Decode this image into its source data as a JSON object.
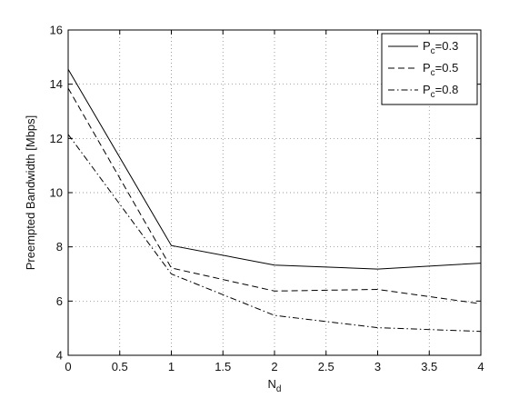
{
  "chart_data": {
    "type": "line",
    "title": "",
    "xlabel": "N",
    "xlabel_sub": "d",
    "ylabel": "Preempted Bandwidth [Mbps]",
    "xlim": [
      0,
      4
    ],
    "ylim": [
      4,
      16
    ],
    "xticks": [
      0,
      0.5,
      1,
      1.5,
      2,
      2.5,
      3,
      3.5,
      4
    ],
    "xtick_labels": [
      "0",
      "0.5",
      "1",
      "1.5",
      "2",
      "2.5",
      "3",
      "3.5",
      "4"
    ],
    "yticks": [
      4,
      6,
      8,
      10,
      12,
      14,
      16
    ],
    "ytick_labels": [
      "4",
      "6",
      "8",
      "10",
      "12",
      "14",
      "16"
    ],
    "grid": true,
    "legend_position": "top-right",
    "x": [
      0,
      1,
      2,
      3,
      4
    ],
    "series": [
      {
        "name_main": "P",
        "name_sub": "c",
        "name_rest": "=0.3",
        "values": [
          14.55,
          8.05,
          7.33,
          7.18,
          7.4
        ],
        "style": "solid"
      },
      {
        "name_main": "P",
        "name_sub": "c",
        "name_rest": "=0.5",
        "values": [
          13.85,
          7.22,
          6.37,
          6.43,
          5.9
        ],
        "style": "dashed"
      },
      {
        "name_main": "P",
        "name_sub": "c",
        "name_rest": "=0.8",
        "values": [
          12.15,
          7.0,
          5.47,
          5.02,
          4.88
        ],
        "style": "dashdot"
      }
    ]
  }
}
